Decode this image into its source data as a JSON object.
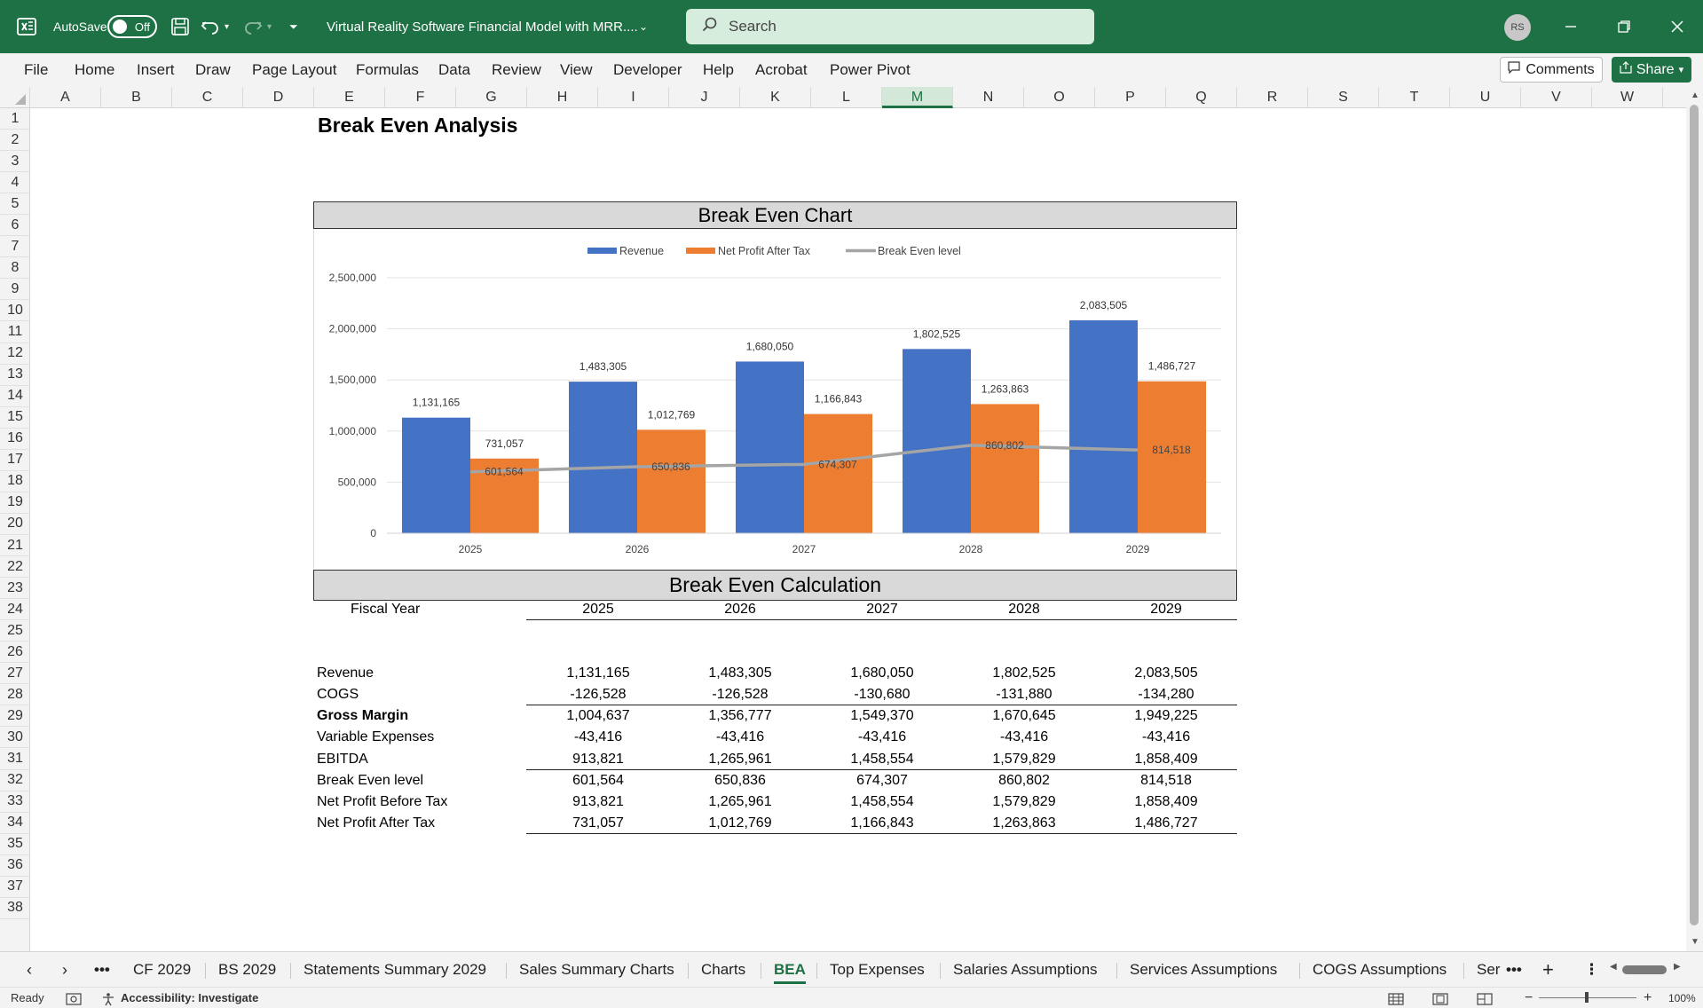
{
  "titlebar": {
    "autosave_label": "AutoSave",
    "autosave_state": "Off",
    "file_title": "Virtual Reality Software Financial Model with MRR....",
    "search_placeholder": "Search",
    "user_initials": "RS"
  },
  "menu": {
    "items": [
      "File",
      "Home",
      "Insert",
      "Draw",
      "Page Layout",
      "Formulas",
      "Data",
      "Review",
      "View",
      "Developer",
      "Help",
      "Acrobat",
      "Power Pivot"
    ],
    "comments_label": "Comments",
    "share_label": "Share"
  },
  "grid": {
    "columns": [
      "A",
      "B",
      "C",
      "D",
      "E",
      "F",
      "G",
      "H",
      "I",
      "J",
      "K",
      "L",
      "M",
      "N",
      "O",
      "P",
      "Q",
      "R",
      "S",
      "T",
      "U",
      "V",
      "W"
    ],
    "selected_column": "M",
    "rows": [
      "1",
      "2",
      "3",
      "4",
      "5",
      "6",
      "7",
      "8",
      "9",
      "10",
      "11",
      "12",
      "13",
      "14",
      "15",
      "16",
      "17",
      "18",
      "19",
      "20",
      "21",
      "22",
      "23",
      "24",
      "25",
      "26",
      "27",
      "28",
      "29",
      "30",
      "31",
      "32",
      "33",
      "34",
      "35",
      "36",
      "37",
      "38"
    ]
  },
  "sheet": {
    "title": "Break Even Analysis",
    "chart_banner": "Break Even Chart",
    "calc_banner": "Break Even Calculation"
  },
  "chart_data": {
    "type": "bar",
    "categories": [
      "2025",
      "2026",
      "2027",
      "2028",
      "2029"
    ],
    "series": [
      {
        "name": "Revenue",
        "type": "bar",
        "color": "#4472c4",
        "values": [
          1131165,
          1483305,
          1680050,
          1802525,
          2083505
        ],
        "labels": [
          "1,131,165",
          "1,483,305",
          "1,680,050",
          "1,802,525",
          "2,083,505"
        ]
      },
      {
        "name": "Net Profit After Tax",
        "type": "bar",
        "color": "#ed7d31",
        "values": [
          731057,
          1012769,
          1166843,
          1263863,
          1486727
        ],
        "labels": [
          "731,057",
          "1,012,769",
          "1,166,843",
          "1,263,863",
          "1,486,727"
        ]
      },
      {
        "name": "Break Even level",
        "type": "line",
        "color": "#a5a5a5",
        "values": [
          601564,
          650836,
          674307,
          860802,
          814518
        ],
        "labels": [
          "601,564",
          "650,836",
          "674,307",
          "860,802",
          "814,518"
        ]
      }
    ],
    "y_ticks": [
      "0",
      "500,000",
      "1,000,000",
      "1,500,000",
      "2,000,000",
      "2,500,000"
    ],
    "ylim": [
      0,
      2500000
    ],
    "grid": true,
    "legend": "top"
  },
  "table": {
    "header_label": "Fiscal Year",
    "years": [
      "2025",
      "2026",
      "2027",
      "2028",
      "2029"
    ],
    "rows": [
      {
        "label": "Revenue",
        "bold": false,
        "values": [
          "1,131,165",
          "1,483,305",
          "1,680,050",
          "1,802,525",
          "2,083,505"
        ]
      },
      {
        "label": "COGS",
        "bold": false,
        "values": [
          "-126,528",
          "-126,528",
          "-130,680",
          "-131,880",
          "-134,280"
        ]
      },
      {
        "label": "Gross Margin",
        "bold": true,
        "values": [
          "1,004,637",
          "1,356,777",
          "1,549,370",
          "1,670,645",
          "1,949,225"
        ]
      },
      {
        "label": "Variable Expenses",
        "bold": false,
        "values": [
          "-43,416",
          "-43,416",
          "-43,416",
          "-43,416",
          "-43,416"
        ]
      },
      {
        "label": "EBITDA",
        "bold": false,
        "values": [
          "913,821",
          "1,265,961",
          "1,458,554",
          "1,579,829",
          "1,858,409"
        ]
      },
      {
        "label": "Break Even level",
        "bold": false,
        "values": [
          "601,564",
          "650,836",
          "674,307",
          "860,802",
          "814,518"
        ]
      },
      {
        "label": "Net Profit Before Tax",
        "bold": false,
        "values": [
          "913,821",
          "1,265,961",
          "1,458,554",
          "1,579,829",
          "1,858,409"
        ]
      },
      {
        "label": "Net Profit After Tax",
        "bold": false,
        "values": [
          "731,057",
          "1,012,769",
          "1,166,843",
          "1,263,863",
          "1,486,727"
        ]
      }
    ]
  },
  "tabs": {
    "items": [
      "CF 2029",
      "BS 2029",
      "Statements Summary 2029",
      "Sales Summary Charts",
      "Charts",
      "BEA",
      "Top Expenses",
      "Salaries Assumptions",
      "Services Assumptions",
      "COGS Assumptions",
      "Ser"
    ],
    "active": "BEA"
  },
  "status": {
    "ready": "Ready",
    "accessibility": "Accessibility: Investigate",
    "zoom": "100%"
  }
}
